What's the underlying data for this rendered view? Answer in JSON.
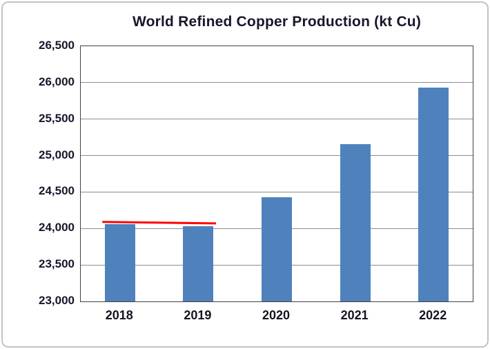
{
  "chart_data": {
    "type": "bar",
    "title": "World Refined Copper Production (kt Cu)",
    "categories": [
      "2018",
      "2019",
      "2020",
      "2021",
      "2022"
    ],
    "values": [
      24060,
      24030,
      24430,
      25160,
      25930
    ],
    "xlabel": "",
    "ylabel": "",
    "ylim": [
      23000,
      26500
    ],
    "ytick_step": 500,
    "ytick_labels": [
      "23,000",
      "23,500",
      "24,000",
      "24,500",
      "25,000",
      "25,500",
      "26,000",
      "26,500"
    ],
    "grid": true,
    "legend": "none",
    "bar_color": "#4F81BD",
    "annotation_line": {
      "name": "red-reference-line",
      "color": "#FF0000",
      "points": [
        {
          "category": "2018",
          "value": 24090
        },
        {
          "category": "2019",
          "value": 24070
        }
      ],
      "extend_frac": 0.045
    }
  }
}
